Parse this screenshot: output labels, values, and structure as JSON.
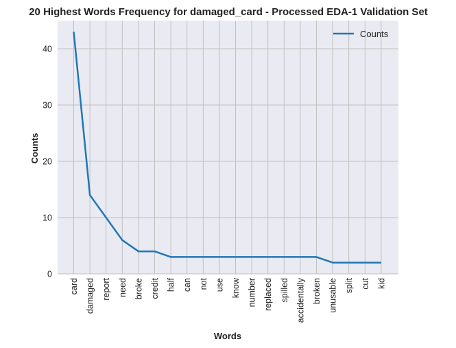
{
  "chart_data": {
    "type": "line",
    "title": "20 Highest Words Frequency for damaged_card - Processed EDA-1 Validation Set",
    "xlabel": "Words",
    "ylabel": "Counts",
    "categories": [
      "card",
      "damaged",
      "report",
      "need",
      "broke",
      "credit",
      "half",
      "can",
      "not",
      "use",
      "know",
      "number",
      "replaced",
      "spilled",
      "accidentally",
      "broken",
      "unusable",
      "split",
      "cut",
      "kid"
    ],
    "series": [
      {
        "name": "Counts",
        "values": [
          43,
          14,
          10,
          6,
          4,
          4,
          3,
          3,
          3,
          3,
          3,
          3,
          3,
          3,
          3,
          3,
          2,
          2,
          2,
          2
        ]
      }
    ],
    "ylim": [
      0,
      45
    ],
    "yticks": [
      0,
      10,
      20,
      30,
      40
    ],
    "grid": true,
    "legend_position": "top-right",
    "line_color": "#1f77b4",
    "plot_background": "#eaeaf2",
    "grid_color": "#c0c0c0"
  }
}
